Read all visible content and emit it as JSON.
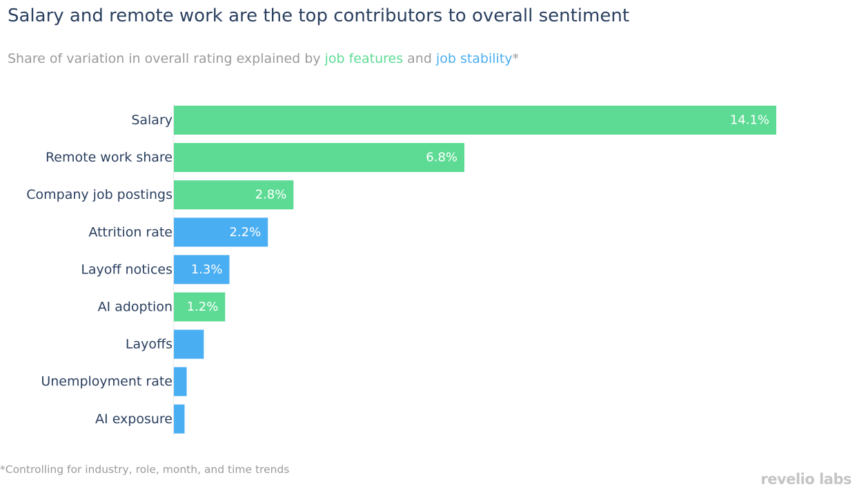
{
  "title": "Salary and remote work are the top contributors to overall sentiment",
  "subtitle": {
    "prefix": "Share of variation in overall rating explained by ",
    "features_label": "job features",
    "middle": " and ",
    "stability_label": "job stability",
    "suffix": "*"
  },
  "footnote": "*Controlling for industry, role, month, and time trends",
  "brand": "revelio labs",
  "colors": {
    "job_features": "#5ddb94",
    "job_stability": "#4aaef2",
    "label_text": "#2a3f5f",
    "value_text": "#ffffff"
  },
  "chart_data": {
    "type": "bar",
    "orientation": "horizontal",
    "categories": [
      "Salary",
      "Remote work share",
      "Company job postings",
      "Attrition rate",
      "Layoff notices",
      "AI adoption",
      "Layoffs",
      "Unemployment rate",
      "AI exposure"
    ],
    "values": [
      14.1,
      6.8,
      2.8,
      2.2,
      1.3,
      1.2,
      0.7,
      0.3,
      0.25
    ],
    "value_labels": [
      "14.1%",
      "6.8%",
      "2.8%",
      "2.2%",
      "1.3%",
      "1.2%",
      "",
      "",
      ""
    ],
    "groups": [
      "job_features",
      "job_features",
      "job_features",
      "job_stability",
      "job_stability",
      "job_features",
      "job_stability",
      "job_stability",
      "job_stability"
    ],
    "xlim": [
      0,
      14.1
    ],
    "grid": false,
    "legend": "none"
  }
}
